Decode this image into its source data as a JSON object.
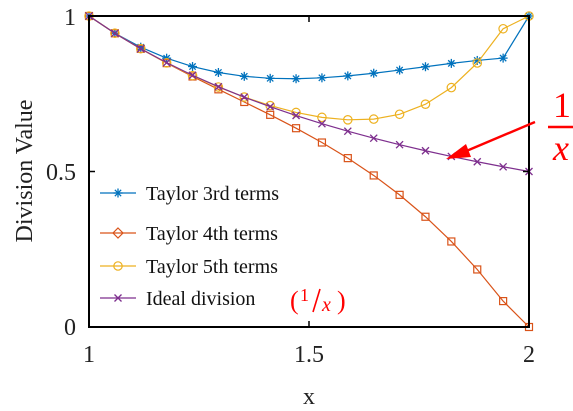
{
  "chart_data": {
    "type": "line",
    "xlabel": "x",
    "ylabel": "Division Value",
    "xlim": [
      1,
      2
    ],
    "ylim": [
      0,
      1
    ],
    "x_ticks": [
      "1",
      "1.5",
      "2"
    ],
    "y_ticks": [
      "0",
      "0.5",
      "1"
    ],
    "grid": false,
    "legend_position": "bottom-left",
    "x": [
      1.0,
      1.0588,
      1.1176,
      1.1765,
      1.2353,
      1.2941,
      1.3529,
      1.4118,
      1.4706,
      1.5294,
      1.5882,
      1.6471,
      1.7059,
      1.7647,
      1.8235,
      1.8824,
      1.9412,
      2.0
    ],
    "series": [
      {
        "name": "Taylor 3rd terms",
        "color": "#0072BD",
        "marker": "asterisk",
        "values": [
          1.0,
          0.9446,
          0.8997,
          0.8643,
          0.8375,
          0.8184,
          0.806,
          0.7996,
          0.7983,
          0.8012,
          0.8074,
          0.816,
          0.8261,
          0.8369,
          0.8476,
          0.8571,
          0.8646,
          1.0
        ]
      },
      {
        "name": "Taylor 4th terms",
        "color": "#D95319",
        "marker": "diamond",
        "values": [
          1.0,
          0.9444,
          0.8945,
          0.8485,
          0.8055,
          0.7642,
          0.7235,
          0.6822,
          0.6392,
          0.5932,
          0.543,
          0.4873,
          0.4249,
          0.3545,
          0.275,
          0.185,
          0.0833,
          0.0
        ]
      },
      {
        "name": "Taylor 5th terms",
        "color": "#EDB120",
        "marker": "circle",
        "values": [
          1.0,
          0.9446,
          0.8948,
          0.8494,
          0.8083,
          0.7716,
          0.7394,
          0.712,
          0.6898,
          0.6741,
          0.6662,
          0.6685,
          0.684,
          0.7164,
          0.7698,
          0.8489,
          0.9589,
          1.0
        ]
      },
      {
        "name": "Ideal division",
        "color": "#7E2F8E",
        "marker": "x",
        "values": [
          1.0,
          0.9444,
          0.8947,
          0.85,
          0.8095,
          0.7727,
          0.7391,
          0.7083,
          0.68,
          0.6538,
          0.6296,
          0.6071,
          0.5862,
          0.5667,
          0.5484,
          0.5313,
          0.5152,
          0.5
        ]
      }
    ],
    "legend": [
      {
        "label": "Taylor 3rd terms",
        "color": "#0072BD",
        "marker": "asterisk"
      },
      {
        "label": "Taylor 4th terms",
        "color": "#D95319",
        "marker": "diamond"
      },
      {
        "label": "Taylor 5th terms",
        "color": "#EDB120",
        "marker": "circle"
      },
      {
        "label": "Ideal division",
        "color": "#7E2F8E",
        "marker": "x"
      }
    ],
    "legend_note": {
      "numerator": "1",
      "denominator": "x"
    },
    "annotation": {
      "numerator": "1",
      "denominator": "x",
      "color": "#ff0000",
      "points_to_x": 1.82,
      "points_to_y": 0.549
    }
  }
}
